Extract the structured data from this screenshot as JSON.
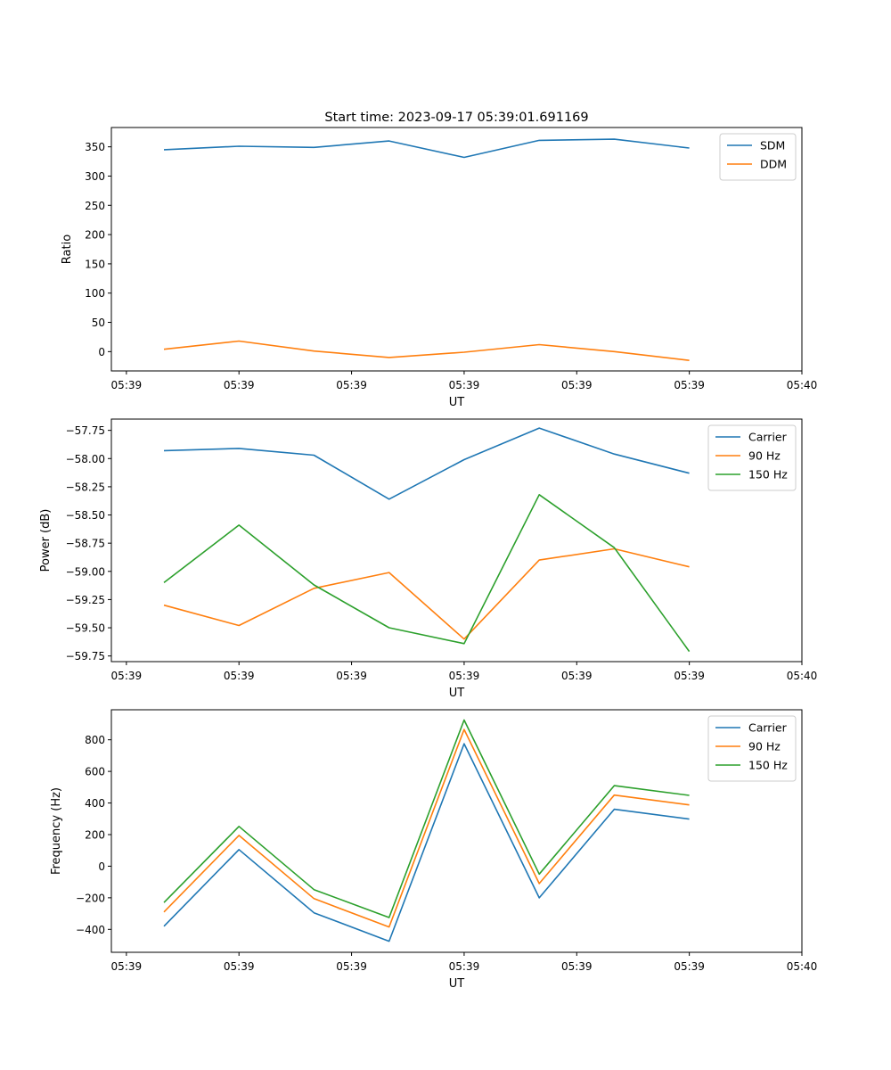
{
  "figure": {
    "suptitle": "Start time: 2023-09-17 05:39:01.691169"
  },
  "colors": {
    "blue": "#1f77b4",
    "orange": "#ff7f0e",
    "green": "#2ca02c"
  },
  "chart_data": [
    {
      "type": "line",
      "title": "Start time: 2023-09-17 05:39:01.691169",
      "xlabel": "UT",
      "ylabel": "Ratio",
      "x": [
        0.5,
        1.5,
        2.5,
        3.5,
        4.5,
        5.5,
        6.5,
        7.5
      ],
      "xlim": [
        -0.2,
        9.0
      ],
      "xticks": [
        0,
        1.5,
        3,
        4.5,
        6,
        7.5,
        9
      ],
      "xtick_labels": [
        "05:39",
        "05:39",
        "05:39",
        "05:39",
        "05:39",
        "05:39",
        "05:40"
      ],
      "ylim": [
        -33,
        383
      ],
      "yticks": [
        0,
        50,
        100,
        150,
        200,
        250,
        300,
        350
      ],
      "ytick_labels": [
        "0",
        "50",
        "100",
        "150",
        "200",
        "250",
        "300",
        "350"
      ],
      "legend": "upper right",
      "series": [
        {
          "name": "SDM",
          "color": "#1f77b4",
          "values": [
            345,
            351,
            349,
            360,
            332,
            361,
            363,
            348
          ]
        },
        {
          "name": "DDM",
          "color": "#ff7f0e",
          "values": [
            4,
            18,
            1,
            -10,
            -1,
            12,
            0,
            -15
          ]
        }
      ]
    },
    {
      "type": "line",
      "title": "",
      "xlabel": "UT",
      "ylabel": "Power (dB)",
      "x": [
        0.5,
        1.5,
        2.5,
        3.5,
        4.5,
        5.5,
        6.5,
        7.5
      ],
      "xlim": [
        -0.2,
        9.0
      ],
      "xticks": [
        0,
        1.5,
        3,
        4.5,
        6,
        7.5,
        9
      ],
      "xtick_labels": [
        "05:39",
        "05:39",
        "05:39",
        "05:39",
        "05:39",
        "05:39",
        "05:40"
      ],
      "ylim": [
        -59.8,
        -57.65
      ],
      "yticks": [
        -59.75,
        -59.5,
        -59.25,
        -59.0,
        -58.75,
        -58.5,
        -58.25,
        -58.0,
        -57.75
      ],
      "ytick_labels": [
        "−59.75",
        "−59.50",
        "−59.25",
        "−59.00",
        "−58.75",
        "−58.50",
        "−58.25",
        "−58.00",
        "−57.75"
      ],
      "legend": "upper right",
      "series": [
        {
          "name": "Carrier",
          "color": "#1f77b4",
          "values": [
            -57.93,
            -57.91,
            -57.97,
            -58.36,
            -58.01,
            -57.73,
            -57.96,
            -58.13
          ]
        },
        {
          "name": "90 Hz",
          "color": "#ff7f0e",
          "values": [
            -59.3,
            -59.48,
            -59.15,
            -59.01,
            -59.6,
            -58.9,
            -58.8,
            -58.96
          ]
        },
        {
          "name": "150 Hz",
          "color": "#2ca02c",
          "values": [
            -59.1,
            -58.59,
            -59.12,
            -59.5,
            -59.64,
            -58.32,
            -58.79,
            -59.71
          ]
        }
      ]
    },
    {
      "type": "line",
      "title": "",
      "xlabel": "UT",
      "ylabel": "Frequency (Hz)",
      "x": [
        0.5,
        1.5,
        2.5,
        3.5,
        4.5,
        5.5,
        6.5,
        7.5
      ],
      "xlim": [
        -0.2,
        9.0
      ],
      "xticks": [
        0,
        1.5,
        3,
        4.5,
        6,
        7.5,
        9
      ],
      "xtick_labels": [
        "05:39",
        "05:39",
        "05:39",
        "05:39",
        "05:39",
        "05:39",
        "05:40"
      ],
      "ylim": [
        -545,
        990
      ],
      "yticks": [
        -400,
        -200,
        0,
        200,
        400,
        600,
        800
      ],
      "ytick_labels": [
        "−400",
        "−200",
        "0",
        "200",
        "400",
        "600",
        "800"
      ],
      "legend": "upper right",
      "series": [
        {
          "name": "Carrier",
          "color": "#1f77b4",
          "values": [
            -380,
            105,
            -295,
            -475,
            775,
            -200,
            360,
            298
          ]
        },
        {
          "name": "90 Hz",
          "color": "#ff7f0e",
          "values": [
            -290,
            195,
            -205,
            -385,
            865,
            -110,
            450,
            388
          ]
        },
        {
          "name": "150 Hz",
          "color": "#2ca02c",
          "values": [
            -230,
            252,
            -148,
            -325,
            925,
            -50,
            510,
            448
          ]
        }
      ]
    }
  ]
}
